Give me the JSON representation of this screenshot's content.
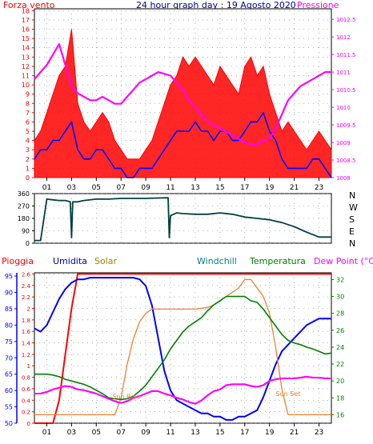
{
  "panels": {
    "wind": {
      "title": "24 hour graph day : 19 Agosto 2020",
      "left_label": "Forza vento",
      "right_label": "Pressione",
      "y_left_ticks": [
        "0",
        "1",
        "2",
        "3",
        "4",
        "5",
        "6",
        "7",
        "8",
        "9",
        "10",
        "11",
        "12",
        "13",
        "14",
        "15",
        "16",
        "17",
        "18"
      ],
      "y_right_ticks": [
        "1008",
        "1008.5",
        "1009",
        "1009.5",
        "1010",
        "1010.5",
        "1011",
        "1011.5",
        "1012",
        "1012.5"
      ]
    },
    "direction": {
      "y_ticks": [
        "0",
        "90",
        "180",
        "270",
        "360"
      ],
      "compass": [
        "N",
        "W",
        "S",
        "E",
        "N"
      ]
    },
    "weather": {
      "labels": {
        "rain": "Pioggia",
        "humidity": "Umidita",
        "solar": "Solar",
        "windchill": "Windchill",
        "temperature": "Temperatura",
        "dewpoint": "Dew Point (°C)"
      },
      "y_humidity_ticks": [
        "50",
        "55",
        "60",
        "65",
        "70",
        "75",
        "80",
        "85",
        "90",
        "95"
      ],
      "y_rain_ticks": [
        "0",
        "0.2",
        "0.4",
        "0.6",
        "0.8",
        "1",
        "1.2",
        "1.4",
        "1.6",
        "1.8",
        "2",
        "2.2",
        "2.4",
        "2.6"
      ],
      "y_temp_ticks": [
        "16",
        "18",
        "20",
        "22",
        "24",
        "26",
        "28",
        "30",
        "32"
      ],
      "annotations": {
        "sunrise": "Sun Rise",
        "sunset": "Sun Set"
      }
    }
  },
  "x_ticks": [
    "01",
    "03",
    "05",
    "07",
    "09",
    "11",
    "13",
    "15",
    "17",
    "19",
    "21",
    "23"
  ],
  "colors": {
    "wind_gust": "#ff0000",
    "wind_avg": "#0000ff",
    "pressure": "#ff00ff",
    "direction": "#004040",
    "rain": "#ff0000",
    "humidity": "#0000ff",
    "solar": "#f08030",
    "windchill": "#ff00ff",
    "temperature": "#008000",
    "dewpoint": "#ff00ff",
    "title": "#0000a0",
    "gold": "#a08000",
    "teal": "#008080"
  },
  "chart_data": [
    {
      "type": "line",
      "x": [
        0,
        0.5,
        1,
        1.5,
        2,
        2.5,
        3,
        3.5,
        4,
        4.5,
        5,
        5.5,
        6,
        6.5,
        7,
        7.5,
        8,
        8.5,
        9,
        9.5,
        10,
        10.5,
        11,
        11.5,
        12,
        12.5,
        13,
        13.5,
        14,
        14.5,
        15,
        15.5,
        16,
        16.5,
        17,
        17.5,
        18,
        18.5,
        19,
        19.5,
        20,
        20.5,
        21,
        21.5,
        22,
        22.5,
        23,
        23.5,
        24
      ],
      "series": [
        {
          "name": "Forza vento",
          "axis": "left",
          "values": [
            4,
            5,
            7,
            9,
            11,
            12,
            16,
            8,
            6,
            5,
            6,
            7,
            6,
            4,
            3,
            2,
            2,
            2,
            3,
            4,
            6,
            8,
            10,
            11,
            13,
            12,
            13,
            12,
            11,
            10,
            12,
            11,
            10,
            9,
            12,
            13,
            11,
            12,
            9,
            7,
            5,
            6,
            5,
            4,
            3,
            4,
            5,
            4,
            3
          ]
        },
        {
          "name": "",
          "axis": "left",
          "values": [
            2,
            3,
            3,
            4,
            4,
            5,
            6,
            3,
            2,
            2,
            3,
            3,
            2,
            1,
            1,
            0,
            0,
            1,
            1,
            1,
            2,
            3,
            4,
            5,
            5,
            5,
            6,
            5,
            5,
            4,
            5,
            5,
            4,
            4,
            5,
            6,
            6,
            7,
            5,
            4,
            2,
            1,
            1,
            1,
            1,
            2,
            2,
            1,
            0
          ]
        },
        {
          "name": "Pressione",
          "axis": "right",
          "values": [
            1010.8,
            1011.0,
            1011.2,
            1011.5,
            1011.8,
            1011.2,
            1010.6,
            1010.4,
            1010.3,
            1010.2,
            1010.2,
            1010.3,
            1010.2,
            1010.1,
            1010.1,
            1010.3,
            1010.5,
            1010.7,
            1010.8,
            1010.9,
            1011.0,
            1010.95,
            1010.9,
            1010.7,
            1010.5,
            1010.2,
            1010.0,
            1009.8,
            1009.6,
            1009.5,
            1009.4,
            1009.3,
            1009.2,
            1009.1,
            1009.0,
            1008.95,
            1008.95,
            1009.05,
            1009.1,
            1009.4,
            1009.8,
            1010.2,
            1010.4,
            1010.6,
            1010.7,
            1010.8,
            1010.9,
            1011.0,
            1011.0
          ]
        }
      ],
      "ylim_left": [
        0,
        18.2
      ],
      "ylim_right": [
        1008,
        1012.8
      ],
      "xlim": [
        0,
        24
      ]
    },
    {
      "type": "line",
      "x": [
        0,
        0.5,
        1,
        1.5,
        2,
        2.5,
        2.9,
        3.0,
        3.1,
        3.5,
        4,
        5,
        6,
        7,
        8,
        9,
        10,
        10.8,
        10.9,
        11,
        11.5,
        12,
        13,
        14,
        15,
        16,
        17,
        18,
        19,
        20,
        21,
        22,
        23,
        24
      ],
      "series": [
        {
          "name": "",
          "values": [
            20,
            20,
            320,
            315,
            310,
            310,
            300,
            40,
            300,
            300,
            310,
            320,
            320,
            325,
            325,
            325,
            328,
            330,
            40,
            200,
            220,
            215,
            210,
            210,
            220,
            210,
            190,
            180,
            170,
            150,
            120,
            80,
            45,
            45
          ]
        }
      ],
      "ylim": [
        0,
        360
      ],
      "xlim": [
        0,
        24
      ]
    },
    {
      "type": "line",
      "x": [
        0,
        0.5,
        1,
        1.5,
        2,
        2.5,
        3,
        3.5,
        4,
        4.5,
        5,
        5.5,
        6,
        6.5,
        7,
        7.5,
        8,
        8.5,
        9,
        9.5,
        10,
        10.5,
        11,
        11.5,
        12,
        12.5,
        13,
        13.5,
        14,
        14.5,
        15,
        15.5,
        16,
        16.5,
        17,
        17.5,
        18,
        18.5,
        19,
        19.5,
        20,
        20.5,
        21,
        21.5,
        22,
        22.5,
        23,
        23.5,
        24
      ],
      "series": [
        {
          "name": "Pioggia",
          "axis": "rain",
          "values": [
            0,
            0,
            0,
            0,
            0.4,
            1.2,
            2.0,
            2.6,
            2.6,
            2.6,
            2.6,
            2.6,
            2.6,
            2.6,
            2.6,
            2.6,
            2.6,
            2.6,
            2.6,
            2.6,
            2.6,
            2.6,
            2.6,
            2.6,
            2.6,
            2.6,
            2.6,
            2.6,
            2.6,
            2.6,
            2.6,
            2.6,
            2.6,
            2.6,
            2.6,
            2.6,
            2.6,
            2.6,
            2.6,
            2.6,
            2.6,
            2.6,
            2.6,
            2.6,
            2.6,
            2.6,
            2.6,
            2.6,
            2.6
          ]
        },
        {
          "name": "Umidita",
          "axis": "humidity",
          "values": [
            79,
            78,
            80,
            84,
            88,
            91,
            93,
            94,
            94,
            94.5,
            94.5,
            94.5,
            94.5,
            94.5,
            94.5,
            94.5,
            94.5,
            94,
            92,
            86,
            76,
            66,
            60,
            57,
            56,
            55,
            54,
            53,
            53,
            52,
            52,
            51,
            51,
            52,
            52,
            53,
            54,
            58,
            63,
            68,
            72,
            74,
            76,
            78,
            80,
            81,
            82,
            82,
            82
          ]
        },
        {
          "name": "Solar",
          "axis": "temp",
          "values": [
            16,
            16,
            16,
            16,
            16,
            16,
            16,
            16,
            16,
            16,
            16,
            16,
            16,
            16,
            18,
            22,
            25,
            27,
            28,
            28.5,
            28.5,
            28.5,
            28.5,
            28.5,
            28.5,
            28.5,
            28.5,
            28.6,
            28.7,
            29,
            29.5,
            30,
            30.5,
            31,
            32,
            32,
            31,
            30,
            28,
            24,
            19,
            16,
            16,
            16,
            16,
            16,
            16,
            16,
            16
          ]
        },
        {
          "name": "Windchill",
          "axis": "temp",
          "values": [
            18.5,
            18.5,
            18.7,
            19,
            19.2,
            19.4,
            19.3,
            19,
            18.9,
            18.7,
            18.5,
            18.2,
            17.9,
            17.6,
            17.4,
            17.6,
            18,
            18.2,
            18.5,
            18.8,
            18.8,
            18.5,
            18.3,
            18,
            17.8,
            17.5,
            17.3,
            17.7,
            18.3,
            18.8,
            19,
            19.5,
            19.6,
            19.6,
            19.6,
            19.4,
            19.3,
            19.5,
            20,
            20.2,
            20.3,
            20.3,
            20.3,
            20.4,
            20.5,
            20.4,
            20.4,
            20.3,
            20.3
          ]
        },
        {
          "name": "Temperatura",
          "axis": "temp",
          "values": [
            20.8,
            20.8,
            20.8,
            20.7,
            20.5,
            20.2,
            20,
            19.8,
            19.6,
            19.3,
            18.9,
            18.5,
            18,
            17.9,
            17.8,
            17.9,
            18.2,
            18.8,
            19.5,
            20.5,
            21.5,
            22.5,
            23.8,
            24.8,
            25.8,
            26.5,
            27,
            27.5,
            28.3,
            29,
            29.5,
            30,
            30,
            30,
            30,
            29.5,
            29.3,
            28.5,
            27.5,
            26.5,
            25.5,
            24.8,
            24.5,
            24.3,
            24,
            23.8,
            23.5,
            23.2,
            23.3
          ]
        },
        {
          "name": "Dew Point (°C)",
          "axis": "temp",
          "values": [
            18.5,
            18.5,
            18.7,
            19,
            19.2,
            19.4,
            19.3,
            19,
            18.9,
            18.7,
            18.5,
            18.2,
            17.9,
            17.6,
            17.4,
            17.6,
            18,
            18.2,
            18.5,
            18.8,
            18.8,
            18.5,
            18.3,
            18,
            17.8,
            17.5,
            17.3,
            17.7,
            18.3,
            18.8,
            19,
            19.5,
            19.6,
            19.6,
            19.6,
            19.4,
            19.3,
            19.5,
            20,
            20.2,
            20.3,
            20.3,
            20.3,
            20.4,
            20.5,
            20.4,
            20.4,
            20.3,
            20.3
          ]
        }
      ],
      "ylim_humidity": [
        50,
        96
      ],
      "ylim_rain": [
        0,
        2.62
      ],
      "ylim_temp": [
        15,
        32.8
      ],
      "xlim": [
        0,
        24
      ]
    }
  ]
}
